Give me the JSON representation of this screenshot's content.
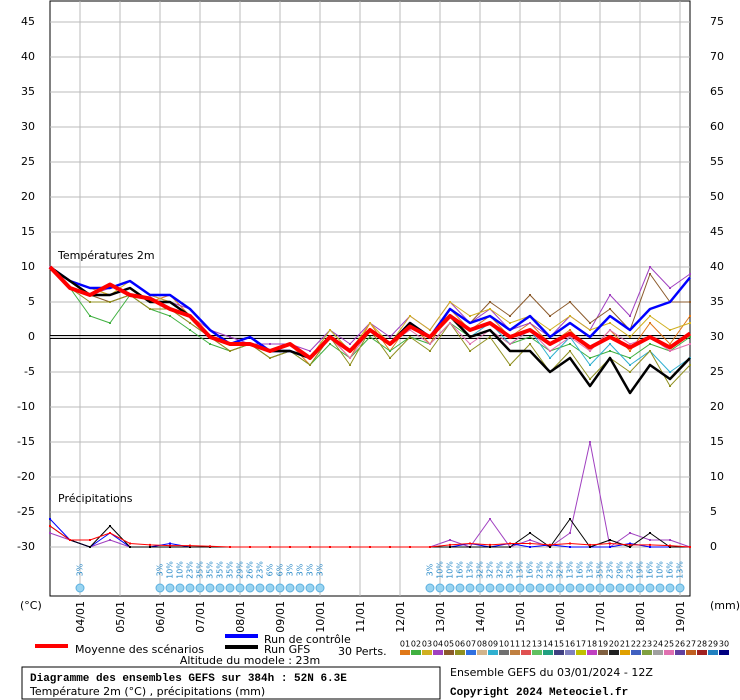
{
  "chart_data": {
    "type": "line",
    "temp_label": "Températures 2m",
    "precip_label": "Précipitations",
    "y_unit": "(°C)",
    "y2_unit": "(mm)",
    "altitude": "Altitude du modele : 23m",
    "perts_label": "30 Perts.",
    "box_title": "Diagramme des ensembles GEFS sur 384h : 52N 6.3E",
    "box_subtitle": "Température 2m (°C) , précipitations (mm)",
    "run_info": "Ensemble GEFS du 03/01/2024 - 12Z",
    "copyright": "Copyright 2024 Meteociel.fr",
    "grid": true,
    "xlim": [
      3.25,
      19.25
    ],
    "xticks": [
      {
        "value": 4,
        "label": "04/01"
      },
      {
        "value": 5,
        "label": "05/01"
      },
      {
        "value": 6,
        "label": "06/01"
      },
      {
        "value": 7,
        "label": "07/01"
      },
      {
        "value": 8,
        "label": "08/01"
      },
      {
        "value": 9,
        "label": "09/01"
      },
      {
        "value": 10,
        "label": "10/01"
      },
      {
        "value": 11,
        "label": "11/01"
      },
      {
        "value": 12,
        "label": "12/01"
      },
      {
        "value": 13,
        "label": "13/01"
      },
      {
        "value": 14,
        "label": "14/01"
      },
      {
        "value": 15,
        "label": "15/01"
      },
      {
        "value": 16,
        "label": "16/01"
      },
      {
        "value": 17,
        "label": "17/01"
      },
      {
        "value": 18,
        "label": "18/01"
      },
      {
        "value": 19,
        "label": "19/01"
      }
    ],
    "ylim": [
      -37,
      48
    ],
    "yticks": [
      -30,
      -25,
      -20,
      -15,
      -10,
      -5,
      0,
      5,
      10,
      15,
      20,
      25,
      30,
      35,
      40,
      45
    ],
    "y2lim": [
      -7,
      78
    ],
    "y2ticks": [
      0,
      5,
      10,
      15,
      20,
      25,
      30,
      35,
      40,
      45,
      50,
      55,
      60,
      65,
      70,
      75
    ],
    "x": [
      3.25,
      3.75,
      4.25,
      4.75,
      5.25,
      5.75,
      6.25,
      6.75,
      7.25,
      7.75,
      8.25,
      8.75,
      9.25,
      9.75,
      10.25,
      10.75,
      11.25,
      11.75,
      12.25,
      12.75,
      13.25,
      13.75,
      14.25,
      14.75,
      15.25,
      15.75,
      16.25,
      16.75,
      17.25,
      17.75,
      18.25,
      18.75,
      19.25
    ],
    "series": [
      {
        "color": "#e07818",
        "values": [
          10,
          8,
          7,
          6,
          7,
          5,
          6,
          3,
          1,
          -1,
          0,
          -2,
          -1,
          -4,
          0,
          -3,
          2,
          -2,
          2,
          -1,
          4,
          1,
          3,
          0,
          2,
          -1,
          1,
          -2,
          1,
          -2,
          2,
          -1,
          3
        ]
      },
      {
        "color": "#40b040",
        "values": [
          10,
          7,
          3,
          2,
          6,
          4,
          3,
          1,
          -1,
          -2,
          -1,
          -3,
          -2,
          -4,
          -1,
          -3,
          0,
          -2,
          0,
          -1,
          2,
          0,
          1,
          -1,
          0,
          -2,
          -1,
          -3,
          -2,
          -3,
          -1,
          -2,
          0
        ]
      },
      {
        "color": "#a040c0",
        "values": [
          10,
          8,
          6,
          7,
          8,
          6,
          5,
          4,
          1,
          0,
          -1,
          -1,
          -1,
          -2,
          1,
          -1,
          2,
          0,
          3,
          1,
          5,
          2,
          4,
          1,
          2,
          0,
          3,
          1,
          6,
          3,
          10,
          7,
          9
        ]
      },
      {
        "color": "#8b5a2b",
        "values": [
          10,
          7,
          6,
          5,
          6,
          4,
          4,
          2,
          0,
          -2,
          -1,
          -3,
          -2,
          -3,
          0,
          -2,
          1,
          -1,
          2,
          0,
          4,
          2,
          5,
          3,
          6,
          3,
          5,
          2,
          4,
          1,
          9,
          5,
          5
        ]
      },
      {
        "color": "#30b0d0",
        "values": [
          10,
          8,
          7,
          7,
          8,
          6,
          6,
          4,
          1,
          -1,
          0,
          -2,
          -1,
          -3,
          1,
          -2,
          1,
          -1,
          2,
          0,
          3,
          0,
          2,
          -1,
          1,
          -3,
          0,
          -4,
          -1,
          -4,
          -2,
          -5,
          -3
        ]
      },
      {
        "color": "#909020",
        "values": [
          10,
          7,
          5,
          5,
          6,
          4,
          4,
          2,
          0,
          -2,
          -1,
          -3,
          -2,
          -4,
          0,
          -4,
          1,
          -3,
          0,
          -2,
          2,
          -2,
          0,
          -4,
          -1,
          -5,
          -2,
          -6,
          -3,
          -5,
          -2,
          -7,
          -4
        ]
      },
      {
        "color": "#d0b020",
        "values": [
          10,
          8,
          7,
          6,
          8,
          6,
          5,
          3,
          0,
          -1,
          0,
          -2,
          -2,
          -3,
          1,
          -2,
          2,
          -1,
          3,
          1,
          5,
          3,
          4,
          2,
          3,
          1,
          3,
          1,
          2,
          0,
          3,
          1,
          2
        ]
      },
      {
        "color": "#e070b0",
        "values": [
          10,
          7,
          6,
          6,
          7,
          5,
          5,
          3,
          1,
          -1,
          0,
          -2,
          -1,
          -3,
          0,
          -3,
          1,
          -1,
          1,
          -1,
          2,
          -1,
          1,
          -1,
          1,
          -2,
          0,
          -2,
          1,
          -1,
          0,
          -2,
          -1
        ]
      },
      {
        "color": "#a040c0",
        "axis": "y2",
        "values": [
          2,
          1,
          0,
          1,
          0,
          0,
          0,
          0,
          0,
          0,
          0,
          0,
          0,
          0,
          0,
          0,
          0,
          0,
          0,
          0,
          1,
          0,
          4,
          0,
          1,
          0,
          2,
          15,
          0,
          2,
          1,
          1,
          0
        ]
      },
      {
        "name": "Run de contrôle",
        "color": "#0000ff",
        "values": [
          10,
          8,
          7,
          7,
          8,
          6,
          6,
          4,
          1,
          -1,
          0,
          -2,
          -2,
          -3,
          0,
          -2,
          1,
          -1,
          2,
          0,
          4,
          2,
          3,
          1,
          3,
          0,
          2,
          0,
          3,
          1,
          4,
          5,
          8.5
        ]
      },
      {
        "color": "#0000ff",
        "axis": "y2",
        "values": [
          4,
          1,
          0,
          2,
          0,
          0,
          0.5,
          0,
          0,
          0,
          0,
          0,
          0,
          0,
          0,
          0,
          0,
          0,
          0,
          0,
          0,
          0.5,
          0,
          0.5,
          0,
          0.3,
          0,
          0,
          0,
          0.5,
          0,
          0,
          0
        ]
      },
      {
        "name": "Run GFS",
        "color": "#000000",
        "values": [
          10,
          8,
          6,
          6,
          7,
          5,
          5,
          3,
          0,
          -1,
          -1,
          -2,
          -2,
          -3,
          0,
          -2,
          1,
          -1,
          2,
          0,
          3,
          0,
          1,
          -2,
          -2,
          -5,
          -3,
          -7,
          -3,
          -8,
          -4,
          -6,
          -3
        ]
      },
      {
        "color": "#000000",
        "axis": "y2",
        "values": [
          3,
          1,
          0,
          3,
          0,
          0,
          0,
          0,
          0,
          0,
          0,
          0,
          0,
          0,
          0,
          0,
          0,
          0,
          0,
          0,
          0,
          0,
          0,
          0,
          2,
          0,
          4,
          0,
          1,
          0,
          2,
          0,
          0
        ]
      },
      {
        "name": "Moyenne des scénarios",
        "color": "#ff0000",
        "values": [
          10,
          7,
          6,
          7.5,
          6,
          5.5,
          4,
          3,
          0,
          -1,
          -1,
          -2,
          -1,
          -3,
          0,
          -2,
          1,
          -1,
          1.5,
          0,
          3,
          1,
          2,
          0,
          1,
          -1,
          0.5,
          -1.5,
          0,
          -1.5,
          0,
          -1.5,
          0.5
        ]
      },
      {
        "color": "#ff0000",
        "axis": "y2",
        "values": [
          3,
          1,
          1,
          2,
          0.5,
          0.3,
          0.2,
          0.2,
          0.1,
          0,
          0,
          0,
          0,
          0,
          0,
          0,
          0,
          0,
          0,
          0,
          0.3,
          0.5,
          0.3,
          0.5,
          0.5,
          0.3,
          0.5,
          0.3,
          0.5,
          0.3,
          0.3,
          0.2,
          0
        ]
      }
    ],
    "members": [
      {
        "name": "01",
        "color": "#e07818"
      },
      {
        "name": "02",
        "color": "#40b040"
      },
      {
        "name": "03",
        "color": "#d0b020"
      },
      {
        "name": "04",
        "color": "#a040c0"
      },
      {
        "name": "05",
        "color": "#8b5a2b"
      },
      {
        "name": "06",
        "color": "#909020"
      },
      {
        "name": "07",
        "color": "#3070e0"
      },
      {
        "name": "08",
        "color": "#d2b48c"
      },
      {
        "name": "09",
        "color": "#30b0d0"
      },
      {
        "name": "10",
        "color": "#707070"
      },
      {
        "name": "11",
        "color": "#c08040"
      },
      {
        "name": "12",
        "color": "#e05050"
      },
      {
        "name": "13",
        "color": "#60c060"
      },
      {
        "name": "14",
        "color": "#20a080"
      },
      {
        "name": "15",
        "color": "#404080"
      },
      {
        "name": "16",
        "color": "#8080c0"
      },
      {
        "name": "17",
        "color": "#c0c000"
      },
      {
        "name": "18",
        "color": "#c040c0"
      },
      {
        "name": "19",
        "color": "#806040"
      },
      {
        "name": "20",
        "color": "#202020"
      },
      {
        "name": "21",
        "color": "#e0a000"
      },
      {
        "name": "22",
        "color": "#4060c0"
      },
      {
        "name": "23",
        "color": "#80a040"
      },
      {
        "name": "24",
        "color": "#a0a0a0"
      },
      {
        "name": "25",
        "color": "#e070b0"
      },
      {
        "name": "26",
        "color": "#6040a0"
      },
      {
        "name": "27",
        "color": "#c06020"
      },
      {
        "name": "28",
        "color": "#a02020"
      },
      {
        "name": "29",
        "color": "#2080c0"
      },
      {
        "name": "30",
        "color": "#000080"
      }
    ],
    "snow_risk": {
      "x": [
        4.0,
        6.0,
        6.25,
        6.5,
        6.75,
        7.0,
        7.25,
        7.5,
        7.75,
        8.0,
        8.25,
        8.5,
        8.75,
        9.0,
        9.25,
        9.5,
        9.75,
        10.0,
        12.75,
        13.0,
        13.25,
        13.5,
        13.75,
        14.0,
        14.25,
        14.5,
        14.75,
        15.0,
        15.25,
        15.5,
        15.75,
        16.0,
        16.25,
        16.5,
        16.75,
        17.0,
        17.25,
        17.5,
        17.75,
        18.0,
        18.25,
        18.5,
        18.75,
        19.0
      ],
      "labels": [
        "3%",
        "3%",
        "10%",
        "10%",
        "23%",
        "35%",
        "35%",
        "35%",
        "35%",
        "29%",
        "26%",
        "23%",
        "6%",
        "6%",
        "3%",
        "3%",
        "3%",
        "3%",
        "3%",
        "10%",
        "10%",
        "16%",
        "13%",
        "32%",
        "32%",
        "32%",
        "35%",
        "13%",
        "16%",
        "23%",
        "32%",
        "32%",
        "13%",
        "16%",
        "13%",
        "35%",
        "23%",
        "29%",
        "23%",
        "19%",
        "16%",
        "10%",
        "16%",
        "13%"
      ]
    }
  }
}
